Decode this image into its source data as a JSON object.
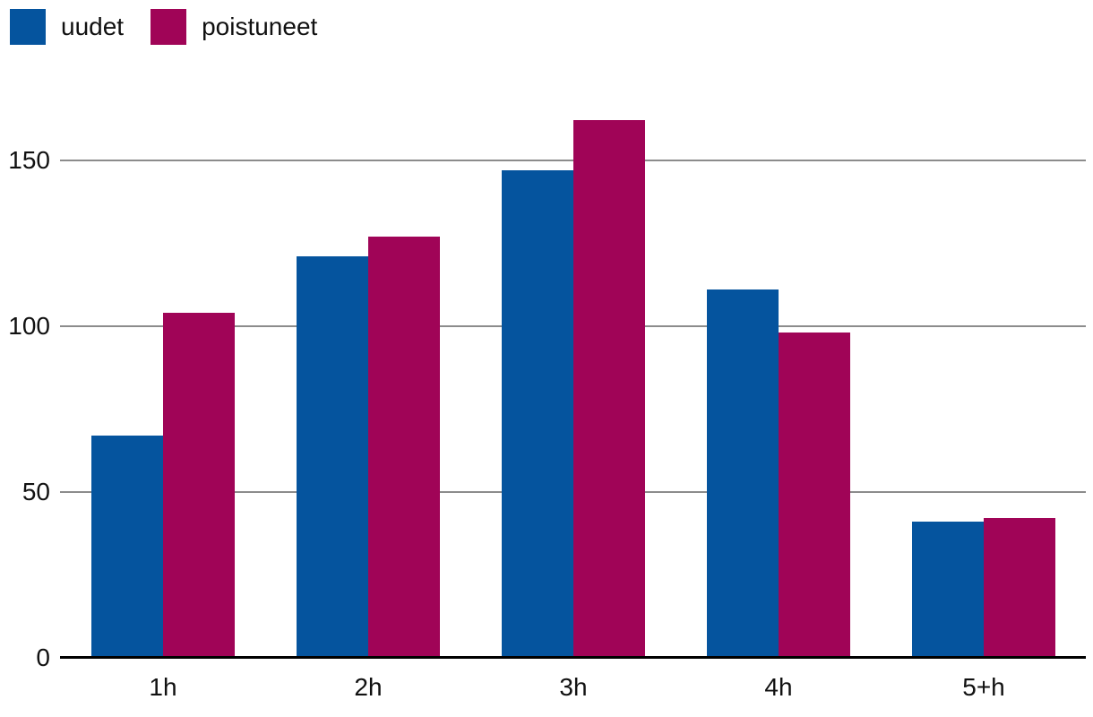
{
  "chart_data": {
    "type": "bar",
    "title": "",
    "categories": [
      "1h",
      "2h",
      "3h",
      "4h",
      "5+h"
    ],
    "series": [
      {
        "name": "uudet",
        "color": "#05549E",
        "values": [
          67,
          121,
          147,
          111,
          41
        ]
      },
      {
        "name": "poistuneet",
        "color": "#A00457",
        "values": [
          104,
          127,
          162,
          98,
          42
        ]
      }
    ],
    "xlabel": "",
    "ylabel": "",
    "y_ticks": [
      0,
      50,
      100,
      150
    ],
    "ylim": [
      0,
      175
    ],
    "grid": true,
    "legend_position": "top-left",
    "colors": {
      "grid": "#8C8C8C",
      "axis": "#000000",
      "text": "#111111",
      "background": "#FFFFFF"
    }
  }
}
